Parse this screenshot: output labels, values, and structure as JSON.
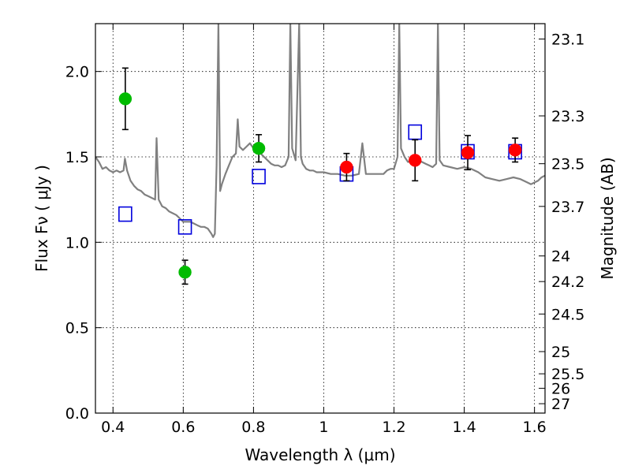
{
  "chart_data": {
    "type": "scatter",
    "title": "",
    "xlabel": "Wavelength  λ (μm)",
    "ylabel": "Flux  Fν  ( μJy )",
    "y2label": "Magnitude (AB)",
    "xlim": [
      0.35,
      1.63
    ],
    "ylim": [
      0.0,
      2.28
    ],
    "xticks": [
      0.4,
      0.6,
      0.8,
      1.0,
      1.2,
      1.4,
      1.6
    ],
    "xtick_labels": [
      "0.4",
      "0.6",
      "0.8",
      "1",
      "1.2",
      "1.4",
      "1.6"
    ],
    "yticks": [
      0.0,
      0.5,
      1.0,
      1.5,
      2.0
    ],
    "ytick_labels": [
      "0.0",
      "0.5",
      "1.0",
      "1.5",
      "2.0"
    ],
    "y2ticks": [
      {
        "label": "23.1",
        "flux": 2.19
      },
      {
        "label": "23.3",
        "flux": 1.74
      },
      {
        "label": "23.5",
        "flux": 1.46
      },
      {
        "label": "23.7",
        "flux": 1.21
      },
      {
        "label": "24",
        "flux": 0.92
      },
      {
        "label": "24.2",
        "flux": 0.77
      },
      {
        "label": "24.5",
        "flux": 0.58
      },
      {
        "label": "25",
        "flux": 0.36
      },
      {
        "label": "25.5",
        "flux": 0.23
      },
      {
        "label": "26",
        "flux": 0.145
      },
      {
        "label": "27",
        "flux": 0.055
      }
    ],
    "grid": true,
    "colors": {
      "spectrum": "#808080",
      "green_points": "#00bb00",
      "red_points": "#ff0000",
      "model_squares": "#0000dd",
      "errorbars": "#000000"
    },
    "series": [
      {
        "kind": "line",
        "points": [
          [
            0.35,
            1.5
          ],
          [
            0.36,
            1.47
          ],
          [
            0.37,
            1.43
          ],
          [
            0.38,
            1.44
          ],
          [
            0.39,
            1.42
          ],
          [
            0.4,
            1.41
          ],
          [
            0.41,
            1.42
          ],
          [
            0.42,
            1.41
          ],
          [
            0.43,
            1.42
          ],
          [
            0.434,
            1.49
          ],
          [
            0.44,
            1.42
          ],
          [
            0.45,
            1.36
          ],
          [
            0.46,
            1.33
          ],
          [
            0.47,
            1.31
          ],
          [
            0.48,
            1.3
          ],
          [
            0.49,
            1.28
          ],
          [
            0.5,
            1.27
          ],
          [
            0.51,
            1.26
          ],
          [
            0.52,
            1.25
          ],
          [
            0.524,
            1.61
          ],
          [
            0.53,
            1.25
          ],
          [
            0.54,
            1.21
          ],
          [
            0.55,
            1.2
          ],
          [
            0.56,
            1.18
          ],
          [
            0.57,
            1.17
          ],
          [
            0.58,
            1.16
          ],
          [
            0.59,
            1.14
          ],
          [
            0.6,
            1.12
          ],
          [
            0.61,
            1.12
          ],
          [
            0.62,
            1.12
          ],
          [
            0.63,
            1.11
          ],
          [
            0.64,
            1.1
          ],
          [
            0.65,
            1.09
          ],
          [
            0.66,
            1.09
          ],
          [
            0.67,
            1.08
          ],
          [
            0.68,
            1.05
          ],
          [
            0.685,
            1.03
          ],
          [
            0.69,
            1.05
          ],
          [
            0.695,
            1.45
          ],
          [
            0.7,
            2.28
          ],
          [
            0.705,
            1.3
          ],
          [
            0.71,
            1.34
          ],
          [
            0.72,
            1.4
          ],
          [
            0.73,
            1.45
          ],
          [
            0.74,
            1.5
          ],
          [
            0.75,
            1.52
          ],
          [
            0.755,
            1.72
          ],
          [
            0.76,
            1.56
          ],
          [
            0.77,
            1.54
          ],
          [
            0.78,
            1.56
          ],
          [
            0.79,
            1.58
          ],
          [
            0.8,
            1.55
          ],
          [
            0.81,
            1.52
          ],
          [
            0.82,
            1.52
          ],
          [
            0.83,
            1.5
          ],
          [
            0.84,
            1.48
          ],
          [
            0.85,
            1.46
          ],
          [
            0.86,
            1.45
          ],
          [
            0.87,
            1.45
          ],
          [
            0.88,
            1.44
          ],
          [
            0.89,
            1.45
          ],
          [
            0.9,
            1.5
          ],
          [
            0.905,
            2.28
          ],
          [
            0.91,
            1.55
          ],
          [
            0.92,
            1.48
          ],
          [
            0.93,
            2.28
          ],
          [
            0.935,
            1.5
          ],
          [
            0.94,
            1.46
          ],
          [
            0.95,
            1.43
          ],
          [
            0.96,
            1.42
          ],
          [
            0.97,
            1.42
          ],
          [
            0.98,
            1.41
          ],
          [
            0.99,
            1.41
          ],
          [
            1.0,
            1.41
          ],
          [
            1.02,
            1.4
          ],
          [
            1.04,
            1.4
          ],
          [
            1.06,
            1.39
          ],
          [
            1.08,
            1.39
          ],
          [
            1.1,
            1.4
          ],
          [
            1.11,
            1.58
          ],
          [
            1.12,
            1.4
          ],
          [
            1.14,
            1.4
          ],
          [
            1.16,
            1.4
          ],
          [
            1.17,
            1.4
          ],
          [
            1.18,
            1.42
          ],
          [
            1.19,
            1.43
          ],
          [
            1.2,
            1.43
          ],
          [
            1.21,
            1.5
          ],
          [
            1.215,
            2.28
          ],
          [
            1.22,
            1.55
          ],
          [
            1.23,
            1.5
          ],
          [
            1.24,
            1.47
          ],
          [
            1.25,
            1.48
          ],
          [
            1.26,
            1.49
          ],
          [
            1.27,
            1.48
          ],
          [
            1.28,
            1.47
          ],
          [
            1.29,
            1.46
          ],
          [
            1.3,
            1.45
          ],
          [
            1.31,
            1.44
          ],
          [
            1.32,
            1.46
          ],
          [
            1.325,
            2.28
          ],
          [
            1.33,
            1.48
          ],
          [
            1.34,
            1.45
          ],
          [
            1.36,
            1.44
          ],
          [
            1.38,
            1.43
          ],
          [
            1.4,
            1.44
          ],
          [
            1.42,
            1.43
          ],
          [
            1.44,
            1.41
          ],
          [
            1.46,
            1.38
          ],
          [
            1.48,
            1.37
          ],
          [
            1.5,
            1.36
          ],
          [
            1.52,
            1.37
          ],
          [
            1.54,
            1.38
          ],
          [
            1.56,
            1.37
          ],
          [
            1.58,
            1.35
          ],
          [
            1.59,
            1.34
          ],
          [
            1.6,
            1.35
          ],
          [
            1.61,
            1.36
          ],
          [
            1.62,
            1.38
          ],
          [
            1.63,
            1.39
          ]
        ]
      },
      {
        "kind": "points",
        "points": [
          {
            "x": 0.435,
            "y": 1.84,
            "err": 0.18
          },
          {
            "x": 0.605,
            "y": 0.825,
            "err": 0.07
          },
          {
            "x": 0.815,
            "y": 1.55,
            "err": 0.08
          }
        ]
      },
      {
        "kind": "points",
        "points": [
          {
            "x": 1.065,
            "y": 1.44,
            "err": 0.08
          },
          {
            "x": 1.26,
            "y": 1.48,
            "err": 0.12
          },
          {
            "x": 1.41,
            "y": 1.525,
            "err": 0.1
          },
          {
            "x": 1.545,
            "y": 1.54,
            "err": 0.07
          }
        ]
      },
      {
        "kind": "squares",
        "points": [
          {
            "x": 0.435,
            "y": 1.165
          },
          {
            "x": 0.605,
            "y": 1.09
          },
          {
            "x": 0.815,
            "y": 1.385
          },
          {
            "x": 1.065,
            "y": 1.4
          },
          {
            "x": 1.26,
            "y": 1.645
          },
          {
            "x": 1.41,
            "y": 1.53
          },
          {
            "x": 1.545,
            "y": 1.53
          }
        ]
      }
    ]
  }
}
